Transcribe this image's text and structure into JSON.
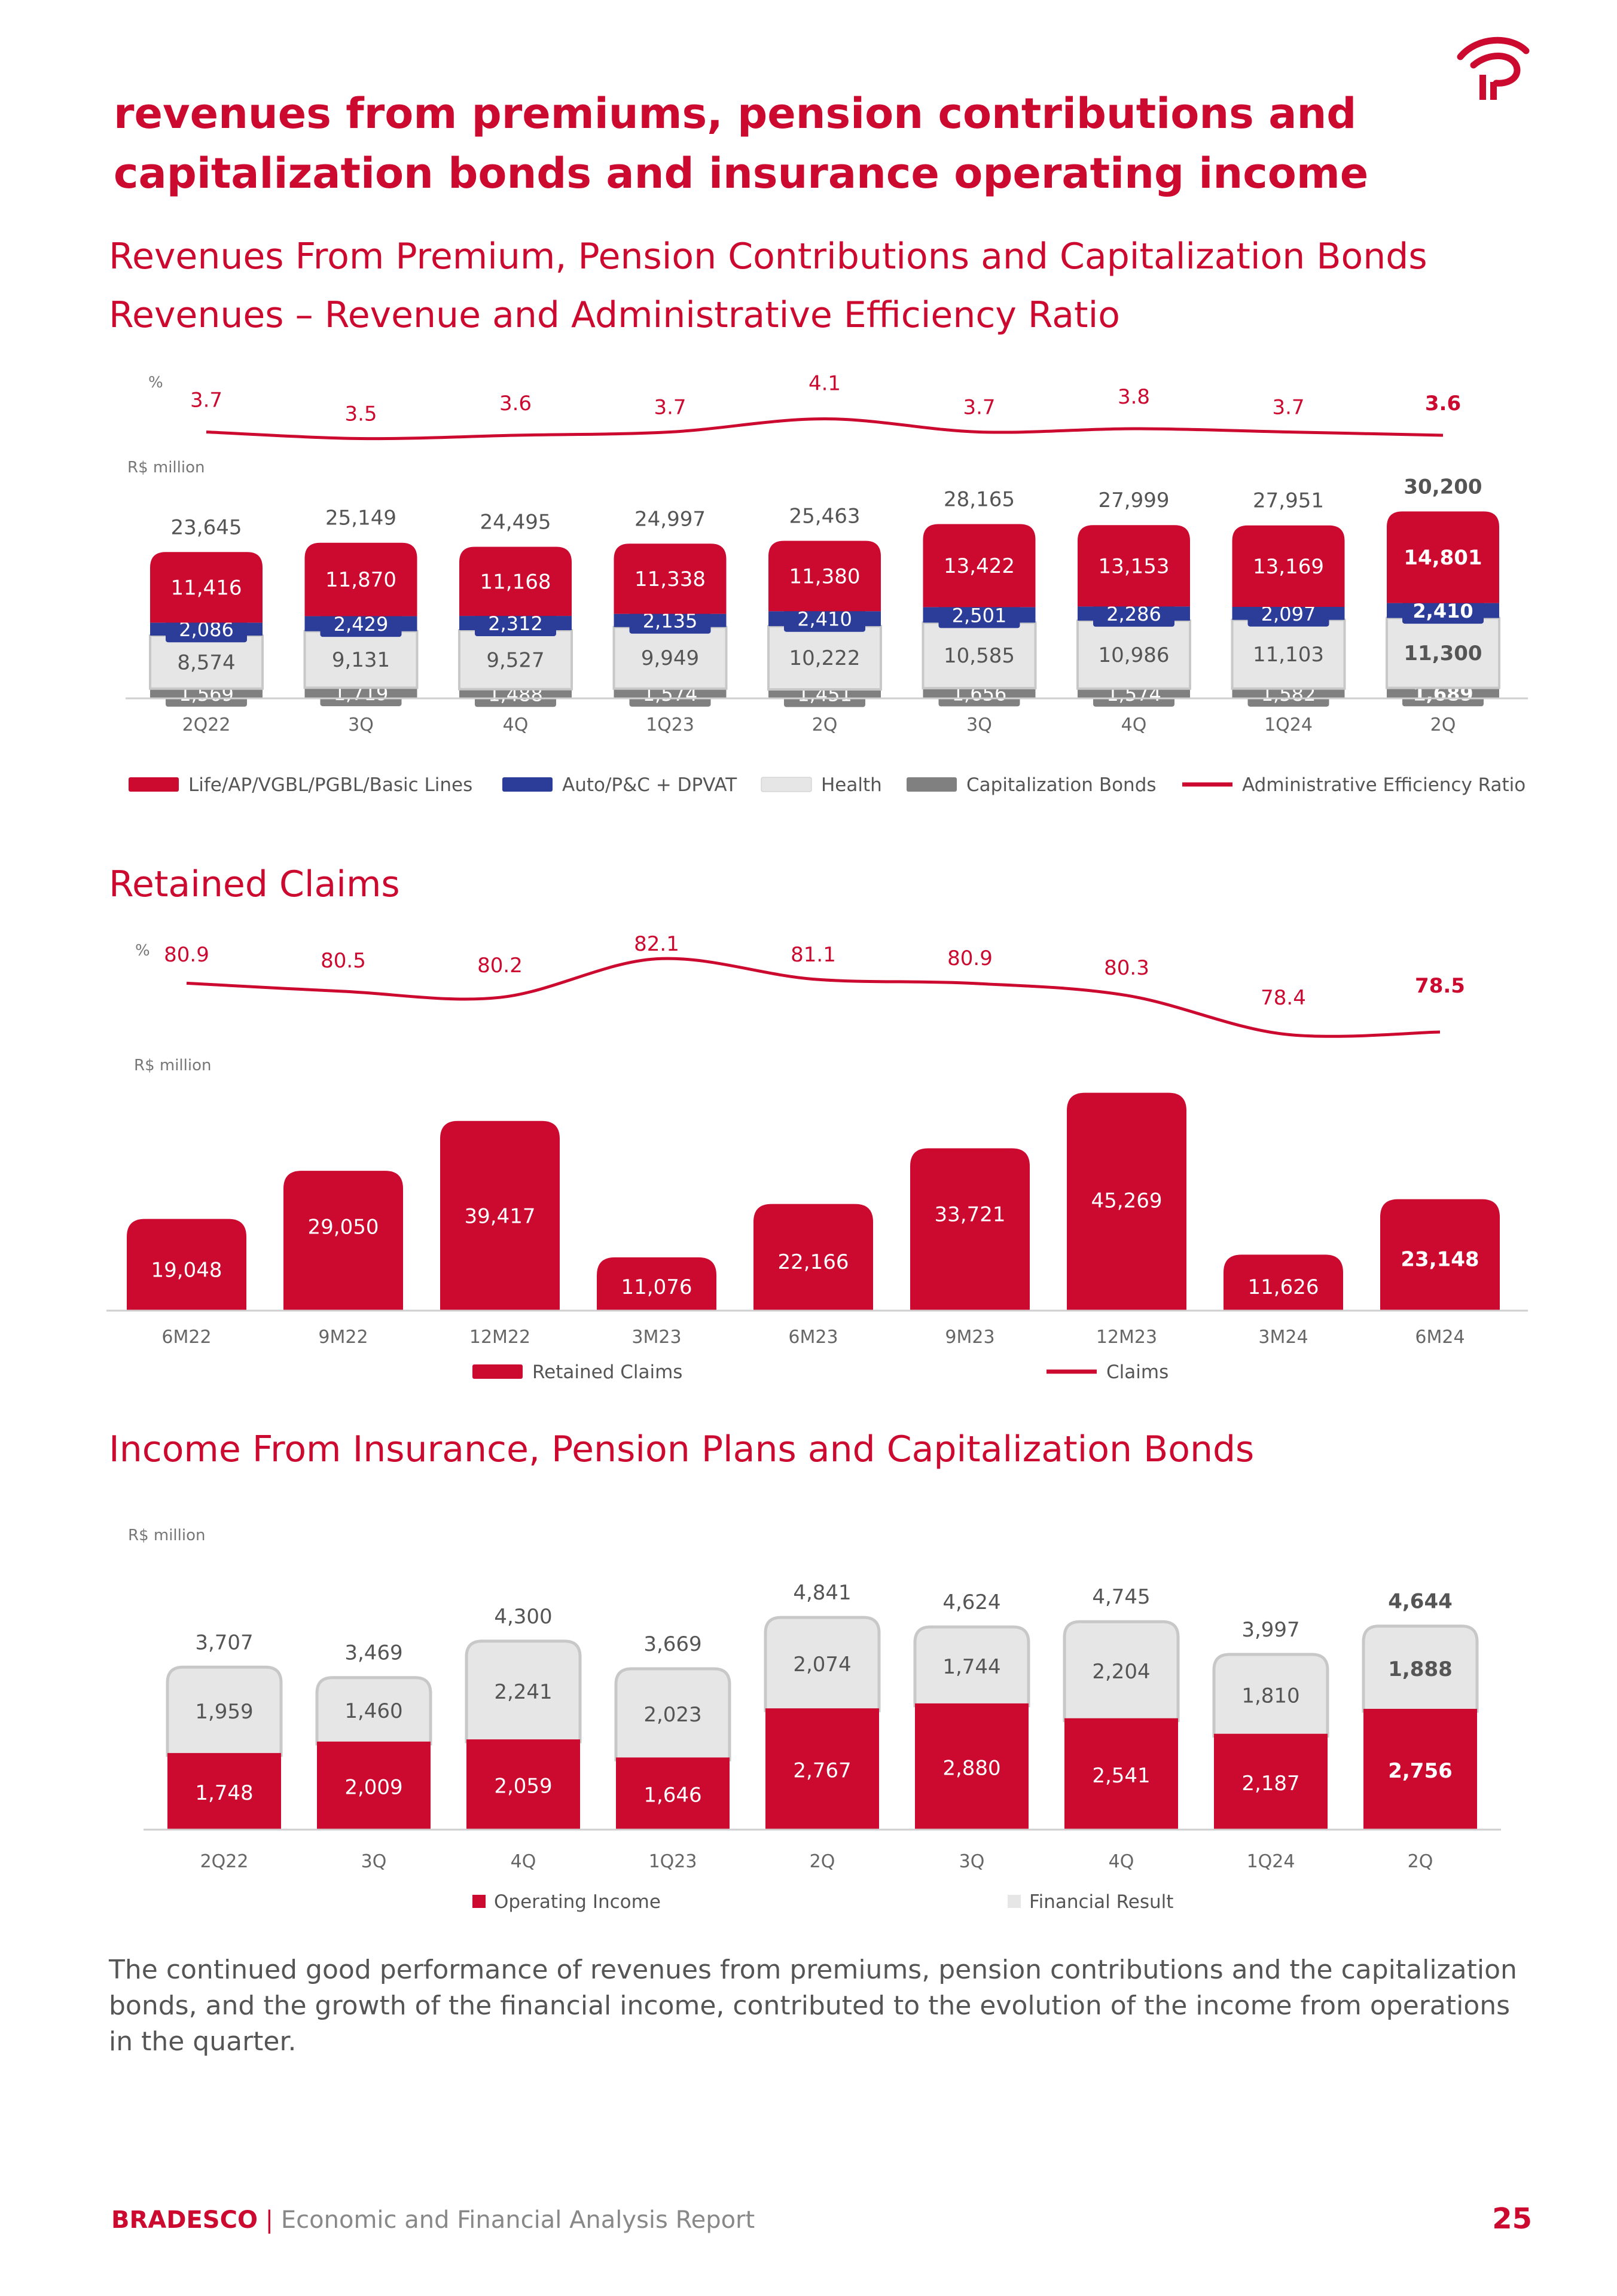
{
  "page": {
    "title_lines": [
      "revenues from premiums, pension contributions and",
      "capitalization bonds and insurance operating income"
    ],
    "paragraph": "The continued good performance of revenues from premiums, pension contributions and the capitalization bonds, and the growth of the financial income, contributed to the evolution of the income from operations in the quarter.",
    "footer": {
      "brand": "BRADESCO",
      "separator": "|",
      "report": "Economic and Financial Analysis Report"
    },
    "page_number": "25",
    "colors": {
      "red": "#cc092f",
      "blue": "#2b3d99",
      "light_gray": "#e6e6e6",
      "dark_gray": "#808080",
      "text": "#555555"
    }
  },
  "chart_data": [
    {
      "type": "bar",
      "stacked": true,
      "title_lines": [
        "Revenues From Premium, Pension Contributions and Capitalization Bonds",
        "Revenues – Revenue and Administrative Efficiency Ratio"
      ],
      "y_unit_label": "R$ million",
      "line_unit_label": "%",
      "categories": [
        "2Q22",
        "3Q",
        "4Q",
        "1Q23",
        "2Q",
        "3Q",
        "4Q",
        "1Q24",
        "2Q"
      ],
      "series": [
        {
          "name": "Capitalization Bonds",
          "color": "#808080",
          "values": [
            1569,
            1719,
            1488,
            1574,
            1451,
            1656,
            1574,
            1582,
            1689
          ]
        },
        {
          "name": "Health",
          "color": "#e6e6e6",
          "values": [
            8574,
            9131,
            9527,
            9949,
            10222,
            10585,
            10986,
            11103,
            11300
          ]
        },
        {
          "name": "Auto/P&C + DPVAT",
          "color": "#2b3d99",
          "values": [
            2086,
            2429,
            2312,
            2135,
            2410,
            2501,
            2286,
            2097,
            2410
          ]
        },
        {
          "name": "Life/AP/VGBL/PGBL/Basic Lines",
          "color": "#cc092f",
          "values": [
            11416,
            11870,
            11168,
            11338,
            11380,
            13422,
            13153,
            13169,
            14801
          ]
        }
      ],
      "totals": [
        23645,
        25149,
        24495,
        24997,
        25463,
        28165,
        27999,
        27951,
        30200
      ],
      "line": {
        "name": "Administrative Efficiency Ratio",
        "color": "#cc092f",
        "values": [
          3.7,
          3.5,
          3.6,
          3.7,
          4.1,
          3.7,
          3.8,
          3.7,
          3.6
        ]
      },
      "legend": [
        "Life/AP/VGBL/PGBL/Basic Lines",
        "Auto/P&C + DPVAT",
        "Health",
        "Capitalization Bonds",
        "Administrative Efficiency Ratio"
      ],
      "legend_position": "bottom",
      "grid": false
    },
    {
      "type": "bar",
      "title": "Retained Claims",
      "y_unit_label": "R$ million",
      "line_unit_label": "%",
      "categories": [
        "6M22",
        "9M22",
        "12M22",
        "3M23",
        "6M23",
        "9M23",
        "12M23",
        "3M24",
        "6M24"
      ],
      "series": [
        {
          "name": "Retained Claims",
          "color": "#cc092f",
          "values": [
            19048,
            29050,
            39417,
            11076,
            22166,
            33721,
            45269,
            11626,
            23148
          ]
        }
      ],
      "line": {
        "name": "Claims",
        "color": "#cc092f",
        "values": [
          80.9,
          80.5,
          80.2,
          82.1,
          81.1,
          80.9,
          80.3,
          78.4,
          78.5
        ]
      },
      "legend": [
        "Retained Claims",
        "Claims"
      ],
      "legend_position": "bottom",
      "grid": false
    },
    {
      "type": "bar",
      "stacked": true,
      "title": "Income From Insurance, Pension Plans and Capitalization Bonds",
      "y_unit_label": "R$ million",
      "categories": [
        "2Q22",
        "3Q",
        "4Q",
        "1Q23",
        "2Q",
        "3Q",
        "4Q",
        "1Q24",
        "2Q"
      ],
      "series": [
        {
          "name": "Operating Income",
          "color": "#cc092f",
          "values": [
            1748,
            2009,
            2059,
            1646,
            2767,
            2880,
            2541,
            2187,
            2756
          ]
        },
        {
          "name": "Financial Result",
          "color": "#e6e6e6",
          "values": [
            1959,
            1460,
            2241,
            2023,
            2074,
            1744,
            2204,
            1810,
            1888
          ]
        }
      ],
      "totals": [
        3707,
        3469,
        4300,
        3669,
        4841,
        4624,
        4745,
        3997,
        4644
      ],
      "legend": [
        "Operating Income",
        "Financial Result"
      ],
      "legend_position": "bottom",
      "grid": false
    }
  ]
}
